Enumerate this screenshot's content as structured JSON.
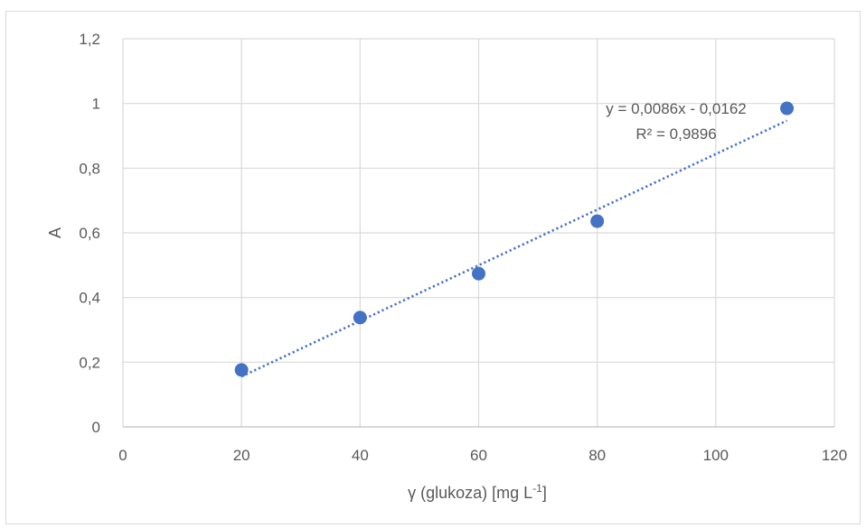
{
  "chart_data": {
    "type": "scatter",
    "title": "",
    "xlabel": "γ (glukoza) [mg L-1]",
    "xlabel_main": "γ (glukoza) [mg L",
    "xlabel_sup": "-1",
    "xlabel_end": "]",
    "ylabel": "A",
    "xlim": [
      0,
      120
    ],
    "ylim": [
      0,
      1.2
    ],
    "x_ticks": [
      0,
      20,
      40,
      60,
      80,
      100,
      120
    ],
    "x_tick_labels": [
      "0",
      "20",
      "40",
      "60",
      "80",
      "100",
      "120"
    ],
    "y_ticks": [
      0,
      0.2,
      0.4,
      0.6,
      0.8,
      1.0,
      1.2
    ],
    "y_tick_labels": [
      "0",
      "0,2",
      "0,4",
      "0,6",
      "0,8",
      "1",
      "1,2"
    ],
    "grid": true,
    "series": [
      {
        "x": [
          20,
          40,
          60,
          80,
          112
        ],
        "y": [
          0.176,
          0.338,
          0.474,
          0.636,
          0.985
        ],
        "color": "#4472c4"
      }
    ],
    "trendline": {
      "type": "linear",
      "slope": 0.0086,
      "intercept": -0.0162,
      "x_range": [
        20,
        112
      ],
      "equation": "y = 0,0086x - 0,0162",
      "r_squared": "R² = 0,9896",
      "color": "#4472c4"
    }
  }
}
